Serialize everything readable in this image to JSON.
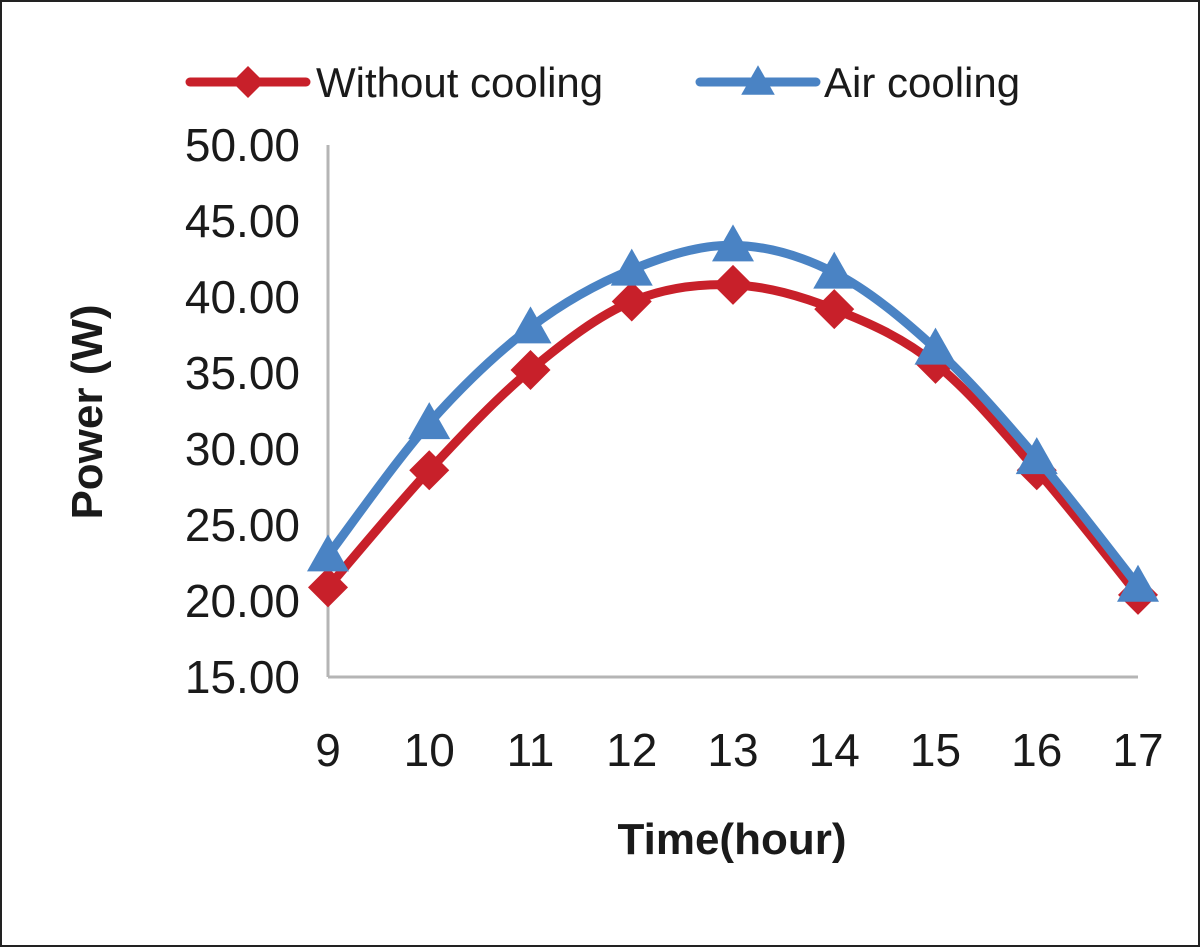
{
  "chart_data": {
    "type": "line",
    "title": "",
    "xlabel": "Time(hour)",
    "ylabel": "Power (W)",
    "x": [
      9,
      10,
      11,
      12,
      13,
      14,
      15,
      16,
      17
    ],
    "x_tick_labels": [
      "9",
      "10",
      "11",
      "12",
      "13",
      "14",
      "15",
      "16",
      "17"
    ],
    "y_tick_labels": [
      "50.00",
      "45.00",
      "40.00",
      "35.00",
      "30.00",
      "25.00",
      "20.00",
      "15.00"
    ],
    "ylim": [
      15,
      50
    ],
    "grid": false,
    "legend_position": "top",
    "series": [
      {
        "name": "Without cooling",
        "color": "#c8202a",
        "marker": "diamond",
        "values": [
          20.9,
          28.6,
          35.2,
          39.7,
          40.8,
          39.2,
          35.6,
          28.6,
          20.4
        ]
      },
      {
        "name": "Air cooling",
        "color": "#4a83c4",
        "marker": "triangle",
        "values": [
          23.0,
          31.7,
          38.0,
          41.8,
          43.4,
          41.6,
          36.6,
          29.4,
          21.0
        ]
      }
    ]
  }
}
